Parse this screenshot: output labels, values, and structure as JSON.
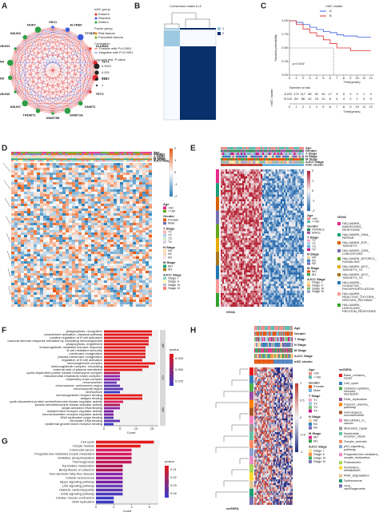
{
  "panel_labels": [
    "A",
    "B",
    "C",
    "D",
    "E",
    "F",
    "G",
    "H"
  ],
  "network": {
    "nodes": [
      {
        "label": "YBX1",
        "color": "#3b5bdb"
      },
      {
        "label": "ALYREF",
        "color": "#3b5bdb"
      },
      {
        "label": "YTHDF1",
        "color": "#3b5bdb"
      },
      {
        "label": "ALKBH1",
        "color": "#e03131"
      },
      {
        "label": "TET1",
        "color": "#e03131"
      },
      {
        "label": "TET2",
        "color": "#e03131"
      },
      {
        "label": "TET3",
        "color": "#e03131"
      },
      {
        "label": "DNMT1",
        "color": "#2f9e44"
      },
      {
        "label": "DNMT3A",
        "color": "#2f9e44"
      },
      {
        "label": "DNMT3B",
        "color": "#2f9e44"
      },
      {
        "label": "TRDMT1",
        "color": "#2f9e44"
      },
      {
        "label": "NSUN7",
        "color": "#2f9e44"
      },
      {
        "label": "NSUN6",
        "color": "#2f9e44"
      },
      {
        "label": "NSUN5",
        "color": "#2f9e44"
      },
      {
        "label": "NSUN4",
        "color": "#2f9e44"
      },
      {
        "label": "NSUN3",
        "color": "#2f9e44"
      },
      {
        "label": "NSUN2",
        "color": "#2f9e44"
      },
      {
        "label": "NOP2",
        "color": "#2f9e44"
      }
    ],
    "legend": {
      "group_title": "m5C group",
      "groups": [
        {
          "label": "Erasers",
          "color": "#e03131"
        },
        {
          "label": "Readers",
          "color": "#3b5bdb"
        },
        {
          "label": "Writers",
          "color": "#2f9e44"
        }
      ],
      "factor_title": "Factor group",
      "factors": [
        {
          "label": "Risk factors",
          "color": "#f08c00"
        },
        {
          "label": "Favorable factors",
          "color": "#74b816"
        }
      ],
      "correlation_title": "Correlation",
      "correlations": [
        {
          "label": "Positive with P<0.0001",
          "color": "#e03131"
        },
        {
          "label": "Negative with P<0.0001",
          "color": "#3b5bdb"
        }
      ],
      "pvalue_title": "Log-rank test, P value",
      "pvalues": [
        "0.0001",
        "0.001",
        "0.01",
        "1"
      ]
    }
  },
  "consensus": {
    "title": "Consensus matrix k=2",
    "legend": [
      {
        "label": "1",
        "color": "#9ecae1"
      },
      {
        "label": "2",
        "color": "#08306b"
      }
    ]
  },
  "heatmap_d": {
    "colorbar": [
      "2",
      "1",
      "0",
      "-1",
      "-2"
    ],
    "colorbar_colors": [
      "#e6550d",
      "#ffffff",
      "#2c7fb8"
    ],
    "annotations": [
      "Age",
      "Gender",
      "T Stage",
      "N Stage",
      "M Stage",
      "AJCC Stage"
    ],
    "groups": [
      {
        "title": "Age",
        "items": [
          {
            "label": ">60",
            "color": "#e7298a"
          },
          {
            "label": "<=60",
            "color": "#66a61e"
          }
        ]
      },
      {
        "title": "Gender",
        "items": [
          {
            "label": "Female",
            "color": "#d95f02"
          },
          {
            "label": "Male",
            "color": "#7570b3"
          }
        ]
      },
      {
        "title": "T Stage",
        "items": [
          {
            "label": "T1",
            "color": "#fbb4ae"
          },
          {
            "label": "T2",
            "color": "#b3cde3"
          },
          {
            "label": "T3",
            "color": "#ccebc5"
          },
          {
            "label": "T4",
            "color": "#decbe4"
          }
        ]
      },
      {
        "title": "N Stage",
        "items": [
          {
            "label": "N0",
            "color": "#fed9a6"
          },
          {
            "label": "N1",
            "color": "#e5d8bd"
          },
          {
            "label": "N2",
            "color": "#fddaec"
          }
        ]
      },
      {
        "title": "M Stage",
        "items": [
          {
            "label": "M0",
            "color": "#1b9e77"
          },
          {
            "label": "M1",
            "color": "#a6761d"
          }
        ]
      },
      {
        "title": "AJCC Stage",
        "items": [
          {
            "label": "Stage I",
            "color": "#8dd3c7"
          },
          {
            "label": "Stage II",
            "color": "#ffffb3"
          },
          {
            "label": "Stage III",
            "color": "#bebada"
          },
          {
            "label": "Stage IV",
            "color": "#fb8072"
          }
        ]
      }
    ]
  },
  "heatmap_e": {
    "label": "GSVA",
    "colorbar": [
      "2",
      "1",
      "0",
      "-1",
      "-2"
    ],
    "colorbar_colors": [
      "#b2182b",
      "#f7f7f7",
      "#2166ac"
    ],
    "annotations": [
      "Age",
      "Gender",
      "T Stage",
      "N Stage",
      "M Stage",
      "AJCC Stage",
      "m5C cluster"
    ],
    "cluster_colors": [
      "#c0392b",
      "#6baed6"
    ],
    "groups": [
      {
        "title": "Age",
        "items": [
          {
            "label": ">60",
            "color": "#f08a8a"
          },
          {
            "label": "<=60",
            "color": "#5bbcb0"
          }
        ]
      },
      {
        "title": "Gender",
        "items": [
          {
            "label": "FEMALE",
            "color": "#2e8b57"
          },
          {
            "label": "MALE",
            "color": "#a64ca6"
          }
        ]
      },
      {
        "title": "T Stage",
        "items": [
          {
            "label": "T1",
            "color": "#f4a6c8"
          },
          {
            "label": "T2",
            "color": "#9ecae1"
          },
          {
            "label": "T3",
            "color": "#6baed6"
          },
          {
            "label": "T4",
            "color": "#c51b8a"
          }
        ]
      },
      {
        "title": "N Stage",
        "items": [
          {
            "label": "N0",
            "color": "#fdd0a2"
          },
          {
            "label": "N1",
            "color": "#3182bd"
          },
          {
            "label": "N2",
            "color": "#756bb1"
          }
        ]
      },
      {
        "title": "M Stage",
        "items": [
          {
            "label": "M0",
            "color": "#e6550d"
          },
          {
            "label": "M1",
            "color": "#31a354"
          }
        ]
      },
      {
        "title": "AJCC Stage",
        "items": [
          {
            "label": "Stage I",
            "color": "#fee391"
          },
          {
            "label": "Stage II",
            "color": "#fdae6b"
          },
          {
            "label": "Stage III",
            "color": "#74c476"
          },
          {
            "label": "Stage IV",
            "color": "#9e9ac8"
          }
        ]
      }
    ],
    "pathway_title": "GSVA",
    "pathways": [
      {
        "label": "HALLMARK_ANDROGEN_RESPONSE",
        "color": "#e7298a"
      },
      {
        "label": "HALLMARK_DNA_REPAIR",
        "color": "#1b9e77"
      },
      {
        "label": "HALLMARK_E2F_TARGETS",
        "color": "#d95f02"
      },
      {
        "label": "HALLMARK_G2M_CHECKPOINT",
        "color": "#7570b3"
      },
      {
        "label": "HALLMARK_MTORC1_SIGNALING",
        "color": "#66a61e"
      },
      {
        "label": "HALLMARK_MYC_TARGETS_V1",
        "color": "#e6ab02"
      },
      {
        "label": "HALLMARK_MYC_TARGETS_V2",
        "color": "#a6761d"
      },
      {
        "label": "HALLMARK_OXIDATIVE_PHOSPHORYLATION",
        "color": "#1f78b4"
      },
      {
        "label": "HALLMARK_REACTIVE_OXYGEN_SPECIES_PATHWAY",
        "color": "#fb9a99"
      },
      {
        "label": "HALLMARK_UNFOLDED_PROTEIN_RESPONSE",
        "color": "#33a02c"
      }
    ]
  },
  "heatmap_h": {
    "label": "ssGSEA",
    "colorbar": [
      "1",
      "0.5",
      "0",
      "-0.5",
      "-1"
    ],
    "colorbar_colors": [
      "#c0392b",
      "#f7f7f7",
      "#1a237e"
    ],
    "annotations": [
      "Age",
      "Gender",
      "T Stage",
      "N Stage",
      "M Stage",
      "AJCC Stage",
      "m5C cluster"
    ],
    "cluster_colors": [
      "#e6550d",
      "#4f81bd"
    ],
    "groups": [
      {
        "title": "Age",
        "items": [
          {
            "label": ">60",
            "color": "#f08a8a"
          },
          {
            "label": "<=60",
            "color": "#5bbcb0"
          }
        ]
      },
      {
        "title": "Gender",
        "items": [
          {
            "label": "Female",
            "color": "#e6550d"
          },
          {
            "label": "Male",
            "color": "#6baed6"
          }
        ]
      },
      {
        "title": "T Stage",
        "items": [
          {
            "label": "T1",
            "color": "#f4a6c8"
          },
          {
            "label": "T2",
            "color": "#9ecae1"
          },
          {
            "label": "T3",
            "color": "#74c476"
          },
          {
            "label": "T4",
            "color": "#c51b8a"
          }
        ]
      },
      {
        "title": "N Stage",
        "items": [
          {
            "label": "N0",
            "color": "#fdd0a2"
          },
          {
            "label": "N1",
            "color": "#3182bd"
          },
          {
            "label": "N2",
            "color": "#756bb1"
          }
        ]
      },
      {
        "title": "M Stage",
        "items": [
          {
            "label": "M0",
            "color": "#e7298a"
          },
          {
            "label": "M1",
            "color": "#31a354"
          }
        ]
      },
      {
        "title": "AJCC Stage",
        "items": [
          {
            "label": "Stage I",
            "color": "#fee391"
          },
          {
            "label": "Stage II",
            "color": "#fd8d3c"
          },
          {
            "label": "Stage III",
            "color": "#41ab5d"
          },
          {
            "label": "Stage IV",
            "color": "#807dba"
          }
        ]
      }
    ],
    "pathway_title": "ssGSEA",
    "pathways": [
      {
        "label": "Base_excision_repair",
        "color": "#e41a1c"
      },
      {
        "label": "Cell_cycle",
        "color": "#377eb8"
      },
      {
        "label": "Cytokine-cytokine_receptor_interaction",
        "color": "#4daf4a"
      },
      {
        "label": "DNA_replication",
        "color": "#984ea3"
      },
      {
        "label": "Fanconi_anemia_pathway",
        "color": "#ff7f00"
      },
      {
        "label": "Homologous_recombination",
        "color": "#a65628"
      },
      {
        "label": "MicroRNAs_in_cancer",
        "color": "#f781bf"
      },
      {
        "label": "Mismatch_repair",
        "color": "#999999"
      },
      {
        "label": "Nucleotide_excision_repair",
        "color": "#66c2a5"
      },
      {
        "label": "Oocyte_meiosis",
        "color": "#fc8d62"
      },
      {
        "label": "p53_signaling_pathway",
        "color": "#8da0cb"
      },
      {
        "label": "Progesterone-mediated_oocyte_maturation",
        "color": "#e78ac3"
      },
      {
        "label": "Proteasome",
        "color": "#a6d854"
      },
      {
        "label": "Pyrimidine_metabolism",
        "color": "#ffd92f"
      },
      {
        "label": "RNA_degradation",
        "color": "#e5c494"
      },
      {
        "label": "Spliceosome",
        "color": "#1b9e77"
      },
      {
        "label": "Viral_carcinogenesis",
        "color": "#7570b3"
      }
    ]
  },
  "chart_data": [
    {
      "type": "line",
      "title": "m5C cluster",
      "xlabel": "Time(years)",
      "ylabel": "Survival probability",
      "annotation": "p=0.034",
      "x": [
        0,
        1,
        2,
        3,
        4,
        5,
        6,
        7,
        8,
        9,
        10,
        11,
        12
      ],
      "series": [
        {
          "name": "A",
          "color": "#3b5bdb",
          "values": [
            1,
            0.97,
            0.93,
            0.88,
            0.84,
            0.8,
            0.78,
            0.74,
            0.72,
            0.72,
            0.7,
            0.7,
            0.7
          ]
        },
        {
          "name": "B",
          "color": "#e03131",
          "values": [
            1,
            0.93,
            0.85,
            0.78,
            0.72,
            0.65,
            0.58,
            0.5,
            0.5,
            0.45,
            0.45,
            0.45,
            0.45
          ]
        }
      ],
      "xlim": [
        0,
        12.5
      ],
      "ylim": [
        0,
        1
      ],
      "xticks": [
        0,
        1,
        2,
        3,
        4,
        5,
        6,
        7,
        8,
        9,
        10,
        11,
        12
      ],
      "yticks": [
        {
          "value": 0,
          "label": "0.00"
        },
        {
          "value": 0.25,
          "label": "0.25"
        },
        {
          "value": 0.5,
          "label": "0.50"
        },
        {
          "value": 0.75,
          "label": "0.75"
        },
        {
          "value": 1,
          "label": "1.00"
        }
      ],
      "risk_table": {
        "title": "Number at risk",
        "ylabel": "m5C cluster",
        "xlabel": "Time(years)",
        "rows": [
          {
            "name": "A",
            "values": [
              222,
              172,
              117,
              86,
              51,
              30,
              17,
              9,
              5,
              3,
              2,
              1,
              0
            ]
          },
          {
            "name": "B",
            "values": [
              110,
              89,
              56,
              42,
              23,
              12,
              6,
              5,
              4,
              3,
              1,
              0,
              0
            ]
          }
        ]
      }
    },
    {
      "type": "bar",
      "xlabel": "Count",
      "xlim": [
        0,
        17
      ],
      "xticks": [
        0,
        5,
        10,
        15
      ],
      "legend_title": "qvalue",
      "legend_lim": [
        0.015,
        0.085
      ],
      "legend_ticks": [
        0.025,
        {
          "value": 0.05,
          "label": "0.050"
        },
        0.075
      ],
      "legend_colors": [
        "#e41a1c",
        "#3a3ac8"
      ],
      "facets": [
        {
          "name": "BP",
          "categories": [
            "phagocytosis, recognition",
            "complement activation, classical pathway",
            "positive regulation of B cell activation",
            "humoral immune response mediated by circulating immunoglobulin",
            "phagocytosis, engulfment",
            "immunoglobulin mediated immune response",
            "B cell mediated immunity",
            "membrane invagination",
            "plasma membrane invagination",
            "regulation of B cell activation"
          ],
          "values": [
            15,
            15,
            14,
            14,
            14,
            13,
            13,
            13,
            13,
            12
          ],
          "colors": [
            "#e41a1c",
            "#e41a1c",
            "#e41a1c",
            "#e41a1c",
            "#e41a1c",
            "#e41a1c",
            "#e41a1c",
            "#e41a1c",
            "#e41a1c",
            "#e41a1c"
          ]
        },
        {
          "name": "CC",
          "categories": [
            "immunoglobulin complex",
            "immunoglobulin complex, circulating",
            "external side of plasma membrane",
            "cyclin-dependent protein kinase holoenzyme complex",
            "mitochondrial respiratory chain complex I",
            "respiratory chain complex",
            "chromocenter",
            "chromosome, centromeric region",
            "chromosomal region",
            "kinetochore"
          ],
          "values": [
            16,
            14,
            12,
            5,
            5,
            5,
            4,
            5,
            6,
            5
          ],
          "colors": [
            "#e41a1c",
            "#e41a1c",
            "#e41a1c",
            "#c2185b",
            "#8e24aa",
            "#8e24aa",
            "#6a3fb5",
            "#5e35b1",
            "#5e35b1",
            "#3a3ac8"
          ]
        },
        {
          "name": "MF",
          "categories": [
            "immunoglobulin receptor binding",
            "antigen binding",
            "cyclin-dependent protein serine/threonine kinase regulator activity",
            "protein serine/threonine kinase activator activity",
            "single-stranded DNA binding",
            "acetylcholine receptor regulator activity",
            "neurotransmitter receptor regulator activity",
            "DNA replication origin binding",
            "chromatin DNA binding",
            "epidermal growth factor receptor binding"
          ],
          "values": [
            12,
            12,
            6,
            5,
            5,
            3,
            3,
            3,
            5,
            3
          ],
          "colors": [
            "#e41a1c",
            "#e41a1c",
            "#d81b60",
            "#ad1457",
            "#8e24aa",
            "#7b1fa2",
            "#7b1fa2",
            "#5e35b1",
            "#5e35b1",
            "#3a3ac8"
          ]
        }
      ]
    },
    {
      "type": "bar",
      "xlabel": "Count",
      "xlim": [
        0,
        7
      ],
      "xticks": [
        0,
        2,
        4,
        6
      ],
      "legend_title": "pvalue",
      "legend_lim": [
        0.005,
        0.045
      ],
      "legend_ticks": [
        0.01,
        0.02,
        0.03,
        0.04
      ],
      "legend_colors": [
        "#e41a1c",
        "#3a3ac8"
      ],
      "facets": [
        {
          "categories": [
            "Cell cycle",
            "Oocyte meiosis",
            "Colorectal cancer",
            "Progesterone-mediated oocyte maturation",
            "Oxidative phosphorylation",
            "Thermogenesis",
            "Pyrimidine metabolism",
            "Biosynthesis of cofactors",
            "Non-alcoholic fatty liver disease",
            "Cellular senescence",
            "Hippo signaling pathway",
            "p53 signaling pathway",
            "Diabetic cardiomyopathy",
            "ErbB signaling pathway",
            "Cardiac muscle contraction",
            "DNA replication"
          ],
          "values": [
            6.5,
            5,
            4,
            4,
            4,
            4,
            3,
            3,
            3,
            3,
            3,
            3,
            3,
            3,
            2,
            2
          ],
          "colors": [
            "#e41a1c",
            "#e41a1c",
            "#d81b60",
            "#d81b60",
            "#c2185b",
            "#c2185b",
            "#ad1457",
            "#ad1457",
            "#8e24aa",
            "#8e24aa",
            "#7b1fa2",
            "#6a3fb5",
            "#5e35b1",
            "#4e3bbf",
            "#3a3ac8",
            "#3a3ac8"
          ]
        }
      ]
    }
  ]
}
